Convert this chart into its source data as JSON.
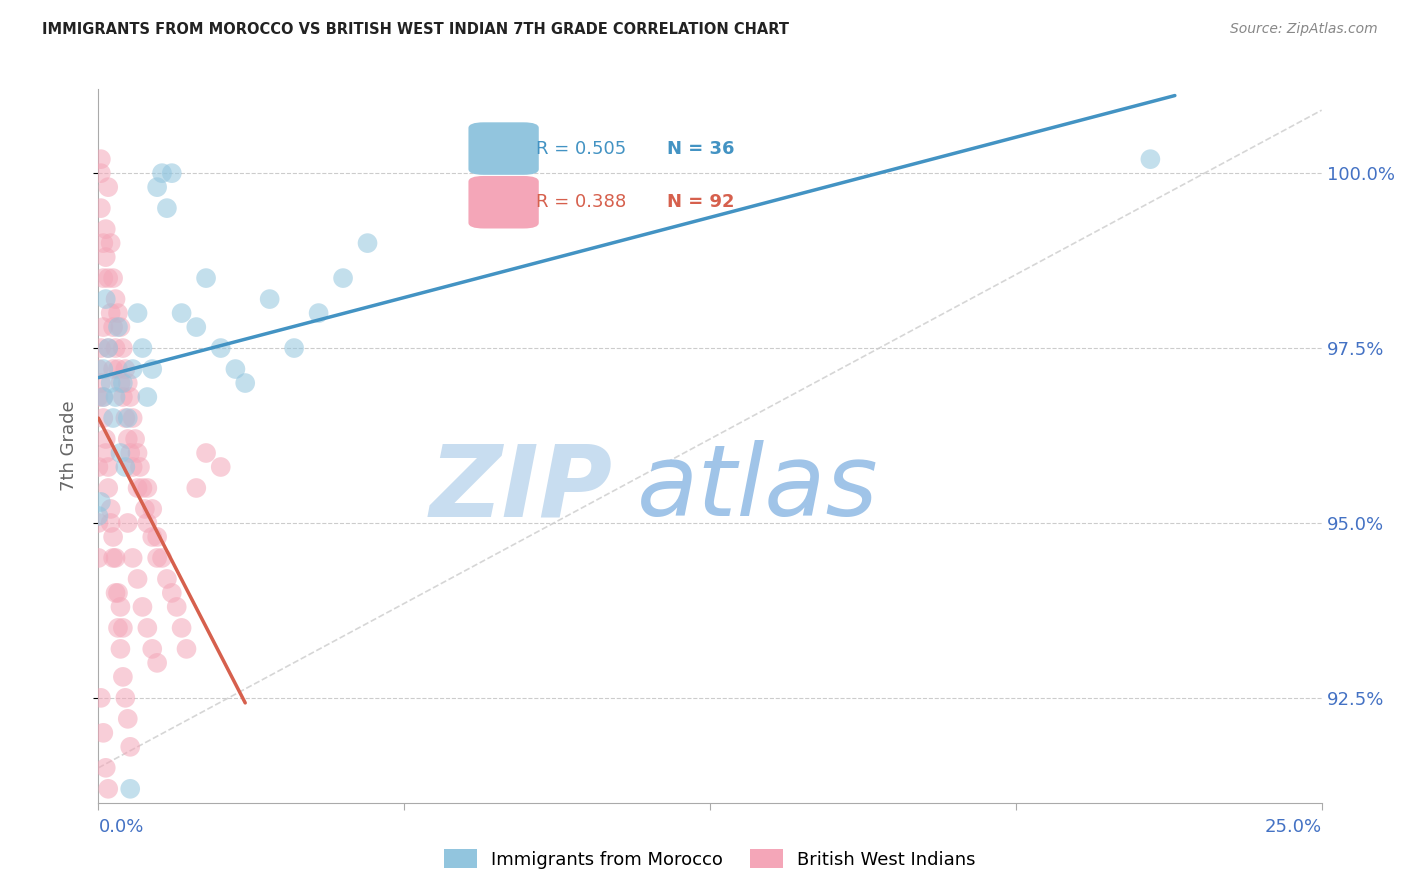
{
  "title": "IMMIGRANTS FROM MOROCCO VS BRITISH WEST INDIAN 7TH GRADE CORRELATION CHART",
  "source": "Source: ZipAtlas.com",
  "ylabel": "7th Grade",
  "xlim": [
    0.0,
    25.0
  ],
  "ylim": [
    91.0,
    101.2
  ],
  "y_ticks": [
    92.5,
    95.0,
    97.5,
    100.0
  ],
  "blue_color": "#92c5de",
  "pink_color": "#f4a6b8",
  "blue_line_color": "#4393c3",
  "pink_line_color": "#d6604d",
  "ref_line_color": "#cccccc",
  "grid_color": "#cccccc",
  "tick_label_color": "#4472c4",
  "title_color": "#222222",
  "source_color": "#888888",
  "watermark_zip_color": "#c8ddf0",
  "watermark_atlas_color": "#a0c4e8",
  "blue_scatter_x": [
    0.0,
    0.05,
    0.1,
    0.1,
    0.15,
    0.2,
    0.25,
    0.3,
    0.35,
    0.4,
    0.5,
    0.6,
    0.7,
    0.8,
    0.9,
    1.0,
    1.1,
    1.2,
    1.3,
    1.4,
    1.5,
    1.7,
    2.0,
    2.2,
    2.5,
    2.8,
    3.0,
    3.5,
    4.0,
    4.5,
    5.0,
    5.5,
    0.45,
    0.55,
    21.5,
    0.65
  ],
  "blue_scatter_y": [
    95.1,
    95.3,
    96.8,
    97.2,
    98.2,
    97.5,
    97.0,
    96.5,
    96.8,
    97.8,
    97.0,
    96.5,
    97.2,
    98.0,
    97.5,
    96.8,
    97.2,
    99.8,
    100.0,
    99.5,
    100.0,
    98.0,
    97.8,
    98.5,
    97.5,
    97.2,
    97.0,
    98.2,
    97.5,
    98.0,
    98.5,
    99.0,
    96.0,
    95.8,
    100.2,
    91.2
  ],
  "pink_scatter_x": [
    0.0,
    0.0,
    0.0,
    0.05,
    0.05,
    0.05,
    0.1,
    0.1,
    0.1,
    0.15,
    0.15,
    0.2,
    0.2,
    0.2,
    0.25,
    0.25,
    0.3,
    0.3,
    0.3,
    0.35,
    0.35,
    0.4,
    0.4,
    0.45,
    0.45,
    0.5,
    0.5,
    0.55,
    0.55,
    0.6,
    0.6,
    0.65,
    0.65,
    0.7,
    0.7,
    0.75,
    0.8,
    0.8,
    0.85,
    0.9,
    0.95,
    1.0,
    1.0,
    1.1,
    1.1,
    1.2,
    1.2,
    1.3,
    1.4,
    1.5,
    1.6,
    1.7,
    1.8,
    2.0,
    2.2,
    2.5,
    0.0,
    0.0,
    0.05,
    0.1,
    0.15,
    0.2,
    0.25,
    0.3,
    0.35,
    0.4,
    0.45,
    0.5,
    0.6,
    0.7,
    0.8,
    0.9,
    1.0,
    1.1,
    1.2,
    0.05,
    0.1,
    0.15,
    0.2,
    0.25,
    0.3,
    0.35,
    0.4,
    0.45,
    0.5,
    0.55,
    0.6,
    0.65,
    0.05,
    0.1,
    0.15,
    0.2
  ],
  "pink_scatter_y": [
    96.8,
    97.2,
    95.8,
    99.5,
    100.0,
    100.2,
    98.5,
    99.0,
    97.8,
    99.2,
    98.8,
    98.5,
    99.8,
    97.5,
    99.0,
    98.0,
    98.5,
    97.8,
    97.2,
    98.2,
    97.5,
    98.0,
    97.2,
    97.8,
    97.0,
    97.5,
    96.8,
    97.2,
    96.5,
    97.0,
    96.2,
    96.8,
    96.0,
    96.5,
    95.8,
    96.2,
    96.0,
    95.5,
    95.8,
    95.5,
    95.2,
    95.5,
    95.0,
    95.2,
    94.8,
    94.8,
    94.5,
    94.5,
    94.2,
    94.0,
    93.8,
    93.5,
    93.2,
    95.5,
    96.0,
    95.8,
    95.0,
    94.5,
    97.5,
    96.8,
    96.2,
    95.8,
    95.2,
    94.8,
    94.5,
    94.0,
    93.8,
    93.5,
    95.0,
    94.5,
    94.2,
    93.8,
    93.5,
    93.2,
    93.0,
    97.0,
    96.5,
    96.0,
    95.5,
    95.0,
    94.5,
    94.0,
    93.5,
    93.2,
    92.8,
    92.5,
    92.2,
    91.8,
    92.5,
    92.0,
    91.5,
    91.2
  ],
  "blue_line_x_start": 0.0,
  "blue_line_x_end": 22.0,
  "pink_line_x_start": 0.0,
  "pink_line_x_end": 3.0,
  "legend_r_blue": "R = 0.505",
  "legend_n_blue": "N = 36",
  "legend_r_pink": "R = 0.388",
  "legend_n_pink": "N = 92",
  "blue_legend_color": "#4393c3",
  "pink_legend_color": "#d6604d",
  "legend_label_blue": "Immigrants from Morocco",
  "legend_label_pink": "British West Indians"
}
